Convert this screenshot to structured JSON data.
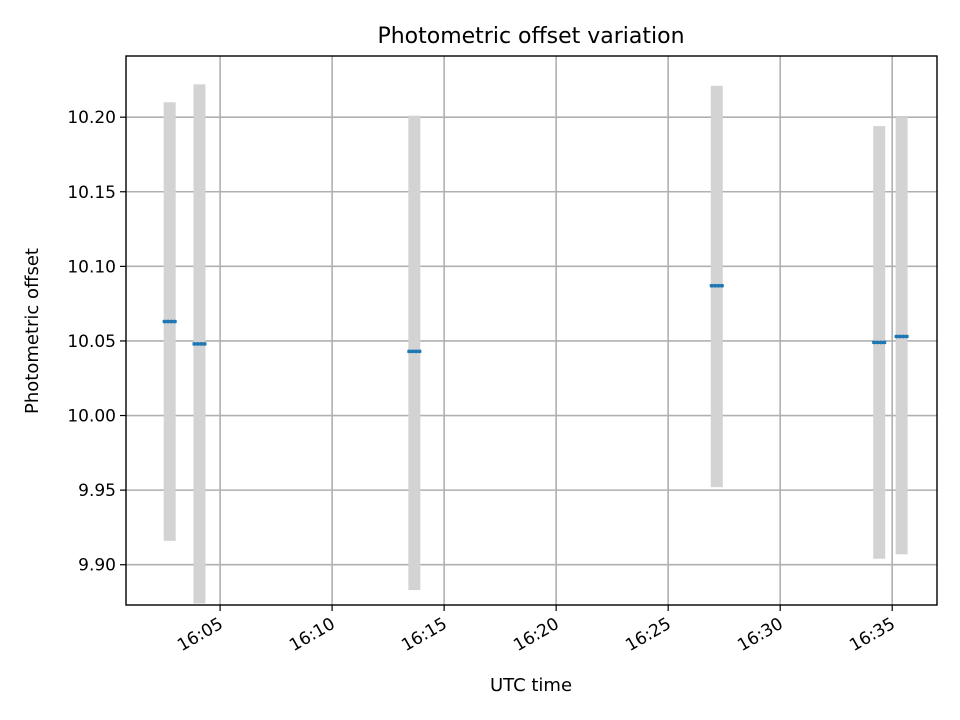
{
  "chart_data": {
    "type": "scatter",
    "title": "Photometric offset variation",
    "xlabel": "UTC time",
    "ylabel": "Photometric offset",
    "x_ticks": [
      "16:05",
      "16:10",
      "16:15",
      "16:20",
      "16:25",
      "16:30",
      "16:35"
    ],
    "x_tick_minutes": [
      5,
      10,
      15,
      20,
      25,
      30,
      35
    ],
    "y_ticks": [
      9.9,
      9.95,
      10.0,
      10.05,
      10.1,
      10.15,
      10.2
    ],
    "y_tick_labels": [
      "9.90",
      "9.95",
      "10.00",
      "10.05",
      "10.10",
      "10.15",
      "10.20"
    ],
    "xlim_minutes_after_16": [
      0.8,
      37.0
    ],
    "ylim": [
      9.873,
      10.241
    ],
    "grid": true,
    "colors": {
      "marker": "#1f77b4",
      "errorbar": "#d3d3d3"
    },
    "points": [
      {
        "time": "16:02:45",
        "t": 2.75,
        "y": 10.063,
        "low": 9.916,
        "high": 10.21
      },
      {
        "time": "16:04:05",
        "t": 4.08,
        "y": 10.048,
        "low": 9.874,
        "high": 10.222
      },
      {
        "time": "16:13:40",
        "t": 13.67,
        "y": 10.043,
        "low": 9.883,
        "high": 10.201
      },
      {
        "time": "16:27:10",
        "t": 27.17,
        "y": 10.087,
        "low": 9.952,
        "high": 10.221
      },
      {
        "time": "16:34:25",
        "t": 34.42,
        "y": 10.049,
        "low": 9.904,
        "high": 10.194
      },
      {
        "time": "16:35:25",
        "t": 35.42,
        "y": 10.053,
        "low": 9.907,
        "high": 10.2
      }
    ]
  }
}
